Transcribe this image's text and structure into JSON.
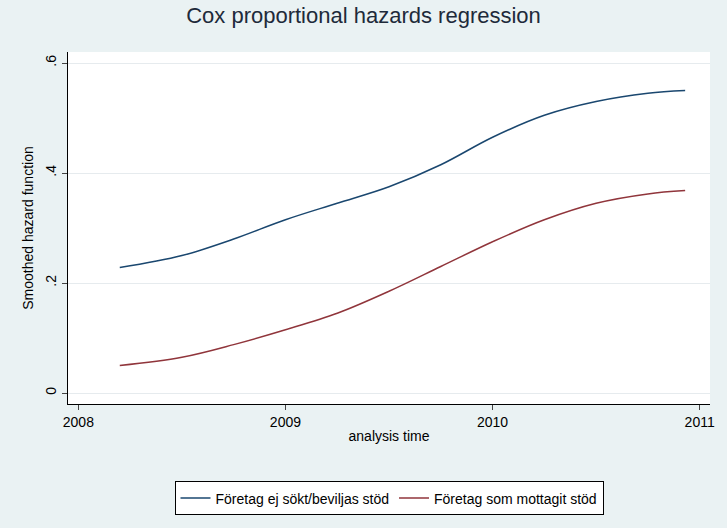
{
  "chart_data": {
    "type": "line",
    "title": "Cox proportional hazards regression",
    "x_label": "analysis time",
    "y_label": "Smoothed hazard function",
    "x": [
      2008.2,
      2008.5,
      2008.75,
      2009.0,
      2009.25,
      2009.5,
      2009.75,
      2010.0,
      2010.25,
      2010.5,
      2010.75,
      2010.93
    ],
    "series": [
      {
        "name": "Företag ej sökt/beviljas stöd",
        "color": "#1a476f",
        "values": [
          0.228,
          0.25,
          0.28,
          0.315,
          0.345,
          0.375,
          0.415,
          0.465,
          0.505,
          0.53,
          0.545,
          0.55
        ]
      },
      {
        "name": "Företag som mottagit stöd",
        "color": "#90353b",
        "values": [
          0.05,
          0.065,
          0.088,
          0.115,
          0.145,
          0.185,
          0.23,
          0.275,
          0.315,
          0.345,
          0.362,
          0.368
        ]
      }
    ],
    "xlim": [
      2007.95,
      2011.05
    ],
    "ylim": [
      -0.02,
      0.62
    ],
    "xticks": [
      2008,
      2009,
      2010,
      2011
    ],
    "yticks": [
      0,
      {
        "value": 0.2,
        "label": ".2"
      },
      {
        "value": 0.4,
        "label": ".4"
      },
      {
        "value": 0.6,
        "label": ".6"
      }
    ],
    "grid": true,
    "legend": "bottom"
  }
}
